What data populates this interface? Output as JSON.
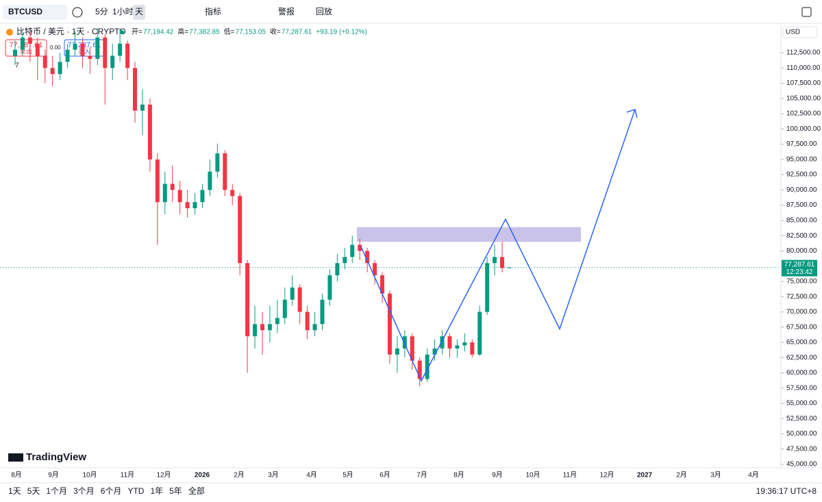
{
  "toolbar": {
    "symbol": "BTCUSD",
    "intervals": [
      "5分",
      "1小时",
      "天"
    ],
    "indicators": "指标",
    "alert": "警报",
    "replay": "回放"
  },
  "chart_data": {
    "type": "candlestick",
    "title": "比特币 / 美元 · 1天 · CRYPTO",
    "legend": [
      {
        "label": "开=",
        "value": "77,194.42"
      },
      {
        "label": "高=",
        "value": "77,382.85"
      },
      {
        "label": "低=",
        "value": "77,153.05"
      },
      {
        "label": "收=",
        "value": "77,287.61"
      }
    ],
    "change": "+93.19 (+0.12%)",
    "sell": {
      "price": "77,287.61",
      "label": "卖出"
    },
    "buy": {
      "price": "77,287.61",
      "label": "买入"
    },
    "spread": "0.00",
    "indicator_count": "7",
    "currency": "USD",
    "last_price": {
      "value": 77287.61,
      "label": "77,287.61"
    },
    "countdown": "12:23:42",
    "colors": {
      "up": "#089981",
      "down": "#f23645"
    },
    "ylim": [
      44440,
      117330
    ],
    "yticks": [
      {
        "value": 45000,
        "label": "45,000.00"
      },
      {
        "value": 47500,
        "label": "47,500.00"
      },
      {
        "value": 50000,
        "label": "50,000.00"
      },
      {
        "value": 52500,
        "label": "52,500.00"
      },
      {
        "value": 55000,
        "label": "55,000.00"
      },
      {
        "value": 57500,
        "label": "57,500.00"
      },
      {
        "value": 60000,
        "label": "60,000.00"
      },
      {
        "value": 62500,
        "label": "62,500.00"
      },
      {
        "value": 65000,
        "label": "65,000.00"
      },
      {
        "value": 67500,
        "label": "67,500.00"
      },
      {
        "value": 70000,
        "label": "70,000.00"
      },
      {
        "value": 72500,
        "label": "72,500.00"
      },
      {
        "value": 75000,
        "label": "75,000.00"
      },
      {
        "value": 77500,
        "label": "77,500.00"
      },
      {
        "value": 80000,
        "label": "80,000.00"
      },
      {
        "value": 82500,
        "label": "82,500.00"
      },
      {
        "value": 85000,
        "label": "85,000.00"
      },
      {
        "value": 87500,
        "label": "87,500.00"
      },
      {
        "value": 90000,
        "label": "90,000.00"
      },
      {
        "value": 92500,
        "label": "92,500.00"
      },
      {
        "value": 95000,
        "label": "95,000.00"
      },
      {
        "value": 97500,
        "label": "97,500.00"
      },
      {
        "value": 100000,
        "label": "100,000.00"
      },
      {
        "value": 102500,
        "label": "102,500.00"
      },
      {
        "value": 105000,
        "label": "105,000.00"
      },
      {
        "value": 107500,
        "label": "107,500.00"
      },
      {
        "value": 110000,
        "label": "110,000.00"
      },
      {
        "value": 112500,
        "label": "112,500.00"
      }
    ],
    "months": [
      "8月",
      "9月",
      "10月",
      "11月",
      "12月",
      "2026",
      "2月",
      "3月",
      "4月",
      "5月",
      "6月",
      "7月",
      "8月",
      "9月",
      "10月",
      "11月",
      "12月",
      "2027",
      "2月",
      "3月",
      "4月"
    ],
    "candles": [
      [
        112000,
        114500,
        110500,
        113000
      ],
      [
        113000,
        116000,
        112000,
        115000
      ],
      [
        115000,
        116000,
        111000,
        114000
      ],
      [
        114000,
        115000,
        108000,
        112000
      ],
      [
        112000,
        113000,
        107500,
        110000
      ],
      [
        110000,
        112000,
        107000,
        109000
      ],
      [
        109000,
        112500,
        108000,
        111000
      ],
      [
        111000,
        114000,
        110000,
        113000
      ],
      [
        113000,
        116000,
        112000,
        114000
      ],
      [
        114000,
        115000,
        110000,
        112000
      ],
      [
        112000,
        113500,
        109000,
        111500
      ],
      [
        111500,
        116500,
        110500,
        115000
      ],
      [
        115000,
        115500,
        104000,
        110000
      ],
      [
        110000,
        114000,
        108000,
        112000
      ],
      [
        112000,
        116500,
        111000,
        114000
      ],
      [
        114000,
        114500,
        108000,
        110000
      ],
      [
        110000,
        111000,
        101000,
        103000
      ],
      [
        103000,
        106500,
        99000,
        104000
      ],
      [
        104000,
        105000,
        93000,
        95000
      ],
      [
        95000,
        96000,
        81000,
        88000
      ],
      [
        88000,
        93000,
        86000,
        91000
      ],
      [
        91000,
        94000,
        88000,
        90000
      ],
      [
        90000,
        91500,
        86000,
        88000
      ],
      [
        88000,
        90000,
        85500,
        87000
      ],
      [
        87000,
        89500,
        86000,
        88000
      ],
      [
        88000,
        91000,
        87000,
        90000
      ],
      [
        90000,
        95000,
        89000,
        93000
      ],
      [
        93000,
        97600,
        92000,
        96000
      ],
      [
        96000,
        96500,
        89000,
        90000
      ],
      [
        90000,
        91000,
        87500,
        89000
      ],
      [
        89000,
        89500,
        76000,
        78000
      ],
      [
        78000,
        78500,
        60000,
        66000
      ],
      [
        66000,
        71000,
        64000,
        68000
      ],
      [
        68000,
        70000,
        63000,
        67000
      ],
      [
        67000,
        71000,
        65000,
        68000
      ],
      [
        68000,
        72000,
        66500,
        69000
      ],
      [
        69000,
        74000,
        68000,
        72000
      ],
      [
        72000,
        76000,
        71000,
        74000
      ],
      [
        74000,
        74500,
        68000,
        70000
      ],
      [
        70000,
        71000,
        65500,
        67000
      ],
      [
        67000,
        70000,
        66000,
        68000
      ],
      [
        68000,
        73000,
        67000,
        72000
      ],
      [
        72000,
        77000,
        71000,
        76000
      ],
      [
        76000,
        79500,
        75000,
        78000
      ],
      [
        78000,
        80500,
        77000,
        79000
      ],
      [
        79000,
        82500,
        78000,
        81000
      ],
      [
        81000,
        82000,
        78500,
        80000
      ],
      [
        80000,
        80500,
        76500,
        78000
      ],
      [
        78000,
        78500,
        74500,
        76000
      ],
      [
        76000,
        76500,
        71500,
        73000
      ],
      [
        73000,
        73500,
        61500,
        63000
      ],
      [
        63000,
        66000,
        60000,
        64000
      ],
      [
        64000,
        67000,
        62500,
        66000
      ],
      [
        66000,
        66500,
        60500,
        62000
      ],
      [
        62000,
        62500,
        57800,
        59000
      ],
      [
        59000,
        64000,
        58500,
        63000
      ],
      [
        63000,
        65500,
        62000,
        64000
      ],
      [
        64000,
        67000,
        63000,
        66000
      ],
      [
        66000,
        66500,
        62500,
        64000
      ],
      [
        64000,
        65500,
        62500,
        64500
      ],
      [
        64500,
        66500,
        63500,
        65000
      ],
      [
        65000,
        65500,
        62500,
        63000
      ],
      [
        63000,
        71000,
        62800,
        70000
      ],
      [
        70000,
        79000,
        69500,
        78000
      ],
      [
        78000,
        81000,
        76000,
        79000
      ],
      [
        79000,
        81500,
        76500,
        77194.42
      ],
      [
        77194.42,
        77382.85,
        77153.05,
        77287.61
      ]
    ],
    "drawings": {
      "path": [
        80700,
        58700,
        85200,
        67200,
        103200
      ],
      "zone": [
        81500,
        83900
      ],
      "color": "#2962ff",
      "zone_color": "#b2a8e0"
    }
  },
  "brand": "TradingView",
  "ranges": [
    "1天",
    "5天",
    "1个月",
    "3个月",
    "6个月",
    "YTD",
    "1年",
    "5年",
    "全部"
  ],
  "clock": "19:36:17 UTC+8"
}
